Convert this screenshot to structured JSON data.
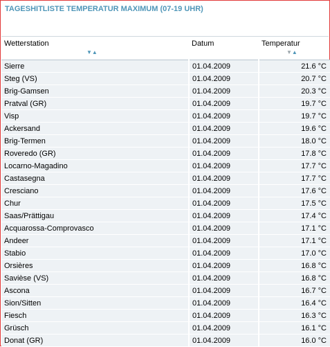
{
  "title": "TAGESHITLISTE TEMPERATUR MAXIMUM (07-19 UHR)",
  "columns": {
    "station": "Wetterstation",
    "date": "Datum",
    "temp": "Temperatur"
  },
  "rows": [
    {
      "station": "Sierre",
      "date": "01.04.2009",
      "temp": "21.6 °C"
    },
    {
      "station": "Steg (VS)",
      "date": "01.04.2009",
      "temp": "20.7 °C"
    },
    {
      "station": "Brig-Gamsen",
      "date": "01.04.2009",
      "temp": "20.3 °C"
    },
    {
      "station": "Pratval (GR)",
      "date": "01.04.2009",
      "temp": "19.7 °C"
    },
    {
      "station": "Visp",
      "date": "01.04.2009",
      "temp": "19.7 °C"
    },
    {
      "station": "Ackersand",
      "date": "01.04.2009",
      "temp": "19.6 °C"
    },
    {
      "station": "Brig-Termen",
      "date": "01.04.2009",
      "temp": "18.0 °C"
    },
    {
      "station": "Roveredo (GR)",
      "date": "01.04.2009",
      "temp": "17.8 °C"
    },
    {
      "station": "Locarno-Magadino",
      "date": "01.04.2009",
      "temp": "17.7 °C"
    },
    {
      "station": "Castasegna",
      "date": "01.04.2009",
      "temp": "17.7 °C"
    },
    {
      "station": "Cresciano",
      "date": "01.04.2009",
      "temp": "17.6 °C"
    },
    {
      "station": "Chur",
      "date": "01.04.2009",
      "temp": "17.5 °C"
    },
    {
      "station": "Saas/Prättigau",
      "date": "01.04.2009",
      "temp": "17.4 °C"
    },
    {
      "station": "Acquarossa-Comprovasco",
      "date": "01.04.2009",
      "temp": "17.1 °C"
    },
    {
      "station": "Andeer",
      "date": "01.04.2009",
      "temp": "17.1 °C"
    },
    {
      "station": "Stabio",
      "date": "01.04.2009",
      "temp": "17.0 °C"
    },
    {
      "station": "Orsières",
      "date": "01.04.2009",
      "temp": "16.8 °C"
    },
    {
      "station": "Savièse (VS)",
      "date": "01.04.2009",
      "temp": "16.8 °C"
    },
    {
      "station": "Ascona",
      "date": "01.04.2009",
      "temp": "16.7 °C"
    },
    {
      "station": "Sion/Sitten",
      "date": "01.04.2009",
      "temp": "16.4 °C"
    },
    {
      "station": "Fiesch",
      "date": "01.04.2009",
      "temp": "16.3 °C"
    },
    {
      "station": "Grüsch",
      "date": "01.04.2009",
      "temp": "16.1 °C"
    },
    {
      "station": "Donat (GR)",
      "date": "01.04.2009",
      "temp": "16.0 °C"
    }
  ],
  "colors": {
    "title": "#4f96b8",
    "row_bg": "#eef2f5",
    "border": "#e23a3a",
    "sort_active": "#4f96b8",
    "sort_inactive": "#9aa4aa"
  },
  "icons": {
    "station_sort": [
      "sort-descending-icon",
      "sort-ascending-icon"
    ],
    "temp_sort": [
      "sort-descending-icon",
      "sort-ascending-icon"
    ]
  }
}
